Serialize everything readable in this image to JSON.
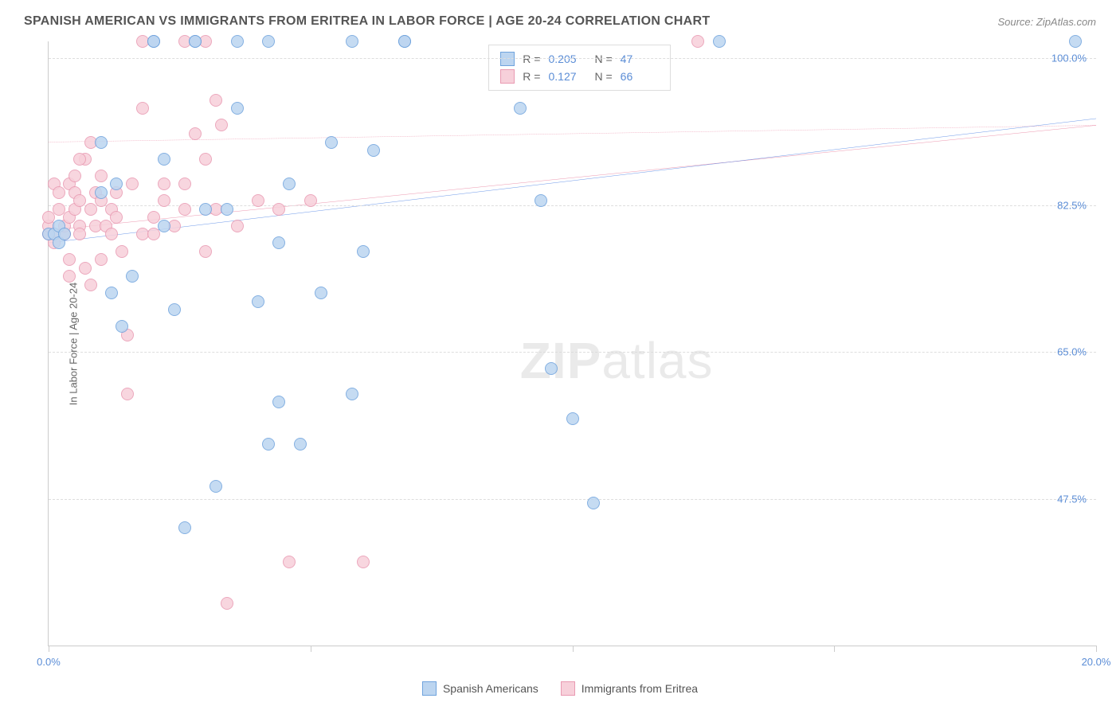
{
  "title": "SPANISH AMERICAN VS IMMIGRANTS FROM ERITREA IN LABOR FORCE | AGE 20-24 CORRELATION CHART",
  "source": "Source: ZipAtlas.com",
  "y_axis_label": "In Labor Force | Age 20-24",
  "watermark_a": "ZIP",
  "watermark_b": "atlas",
  "colors": {
    "blue_fill": "#bcd5f0",
    "blue_stroke": "#6fa3dd",
    "pink_fill": "#f7d0da",
    "pink_stroke": "#e99ab2",
    "blue_line": "#2d6cdf",
    "pink_line": "#e46a8c",
    "axis_text": "#5b8dd6",
    "grid": "#dddddd"
  },
  "y_axis": {
    "min": 30,
    "max": 102,
    "ticks": [
      47.5,
      65.0,
      82.5,
      100.0
    ],
    "tick_labels": [
      "47.5%",
      "65.0%",
      "82.5%",
      "100.0%"
    ]
  },
  "x_axis": {
    "min": 0,
    "max": 20,
    "ticks": [
      0,
      5,
      10,
      15,
      20
    ],
    "end_labels": [
      "0.0%",
      "20.0%"
    ]
  },
  "legend": {
    "series_a": "Spanish Americans",
    "series_b": "Immigrants from Eritrea"
  },
  "stats": {
    "a": {
      "R_label": "R =",
      "R": "0.205",
      "N_label": "N =",
      "N": "47"
    },
    "b": {
      "R_label": "R =",
      "R": "0.127",
      "N_label": "N =",
      "N": "66"
    }
  },
  "trend_a": {
    "y_at_xmin": 78.0,
    "y_at_xmax": 92.8
  },
  "trend_b": {
    "y_at_xmin": 79.5,
    "y_at_xmax": 92.0
  },
  "points_a": [
    [
      0.0,
      79
    ],
    [
      0.1,
      79
    ],
    [
      0.2,
      80
    ],
    [
      0.2,
      78
    ],
    [
      0.3,
      79
    ],
    [
      1.0,
      84
    ],
    [
      1.0,
      90
    ],
    [
      2.0,
      102
    ],
    [
      2.0,
      102
    ],
    [
      2.2,
      88
    ],
    [
      2.2,
      80
    ],
    [
      2.4,
      70
    ],
    [
      1.4,
      68
    ],
    [
      1.6,
      74
    ],
    [
      1.2,
      72
    ],
    [
      1.3,
      85
    ],
    [
      2.8,
      102
    ],
    [
      2.8,
      102
    ],
    [
      3.0,
      82
    ],
    [
      3.4,
      82
    ],
    [
      3.6,
      102
    ],
    [
      3.6,
      94
    ],
    [
      4.0,
      71
    ],
    [
      4.2,
      54
    ],
    [
      4.2,
      102
    ],
    [
      4.8,
      54
    ],
    [
      4.4,
      59
    ],
    [
      4.4,
      78
    ],
    [
      4.6,
      85
    ],
    [
      5.2,
      72
    ],
    [
      5.4,
      90
    ],
    [
      5.8,
      102
    ],
    [
      6.0,
      77
    ],
    [
      5.8,
      60
    ],
    [
      6.2,
      89
    ],
    [
      6.8,
      102
    ],
    [
      6.8,
      102
    ],
    [
      9.0,
      94
    ],
    [
      9.4,
      83
    ],
    [
      9.6,
      63
    ],
    [
      10.0,
      57
    ],
    [
      10.4,
      47
    ],
    [
      12.8,
      102
    ],
    [
      19.6,
      102
    ],
    [
      2.6,
      44
    ],
    [
      3.2,
      49
    ]
  ],
  "points_b": [
    [
      0.0,
      79
    ],
    [
      0.0,
      80
    ],
    [
      0.0,
      81
    ],
    [
      0.1,
      79
    ],
    [
      0.1,
      78
    ],
    [
      0.1,
      85
    ],
    [
      0.2,
      84
    ],
    [
      0.2,
      82
    ],
    [
      0.3,
      79
    ],
    [
      0.3,
      80
    ],
    [
      0.4,
      85
    ],
    [
      0.4,
      76
    ],
    [
      0.4,
      81
    ],
    [
      0.4,
      74
    ],
    [
      0.5,
      82
    ],
    [
      0.5,
      84
    ],
    [
      0.6,
      80
    ],
    [
      0.6,
      79
    ],
    [
      0.6,
      83
    ],
    [
      0.7,
      88
    ],
    [
      0.7,
      75
    ],
    [
      0.8,
      90
    ],
    [
      0.8,
      82
    ],
    [
      0.8,
      73
    ],
    [
      0.9,
      84
    ],
    [
      0.9,
      80
    ],
    [
      1.0,
      83
    ],
    [
      1.0,
      86
    ],
    [
      1.0,
      76
    ],
    [
      1.1,
      80
    ],
    [
      1.2,
      79
    ],
    [
      1.2,
      82
    ],
    [
      1.3,
      81
    ],
    [
      1.3,
      84
    ],
    [
      1.4,
      77
    ],
    [
      1.5,
      60
    ],
    [
      1.5,
      67
    ],
    [
      1.6,
      85
    ],
    [
      1.8,
      79
    ],
    [
      1.8,
      94
    ],
    [
      2.0,
      79
    ],
    [
      2.0,
      81
    ],
    [
      2.2,
      83
    ],
    [
      2.4,
      80
    ],
    [
      2.6,
      82
    ],
    [
      2.8,
      91
    ],
    [
      3.0,
      77
    ],
    [
      3.0,
      102
    ],
    [
      3.2,
      82
    ],
    [
      3.3,
      92
    ],
    [
      3.4,
      35
    ],
    [
      3.6,
      80
    ],
    [
      4.0,
      83
    ],
    [
      4.4,
      82
    ],
    [
      5.0,
      83
    ],
    [
      4.6,
      40
    ],
    [
      6.0,
      40
    ],
    [
      1.8,
      102
    ],
    [
      2.2,
      85
    ],
    [
      2.6,
      85
    ],
    [
      3.0,
      88
    ],
    [
      2.6,
      102
    ],
    [
      3.2,
      95
    ],
    [
      12.4,
      102
    ],
    [
      0.5,
      86
    ],
    [
      0.6,
      88
    ]
  ]
}
